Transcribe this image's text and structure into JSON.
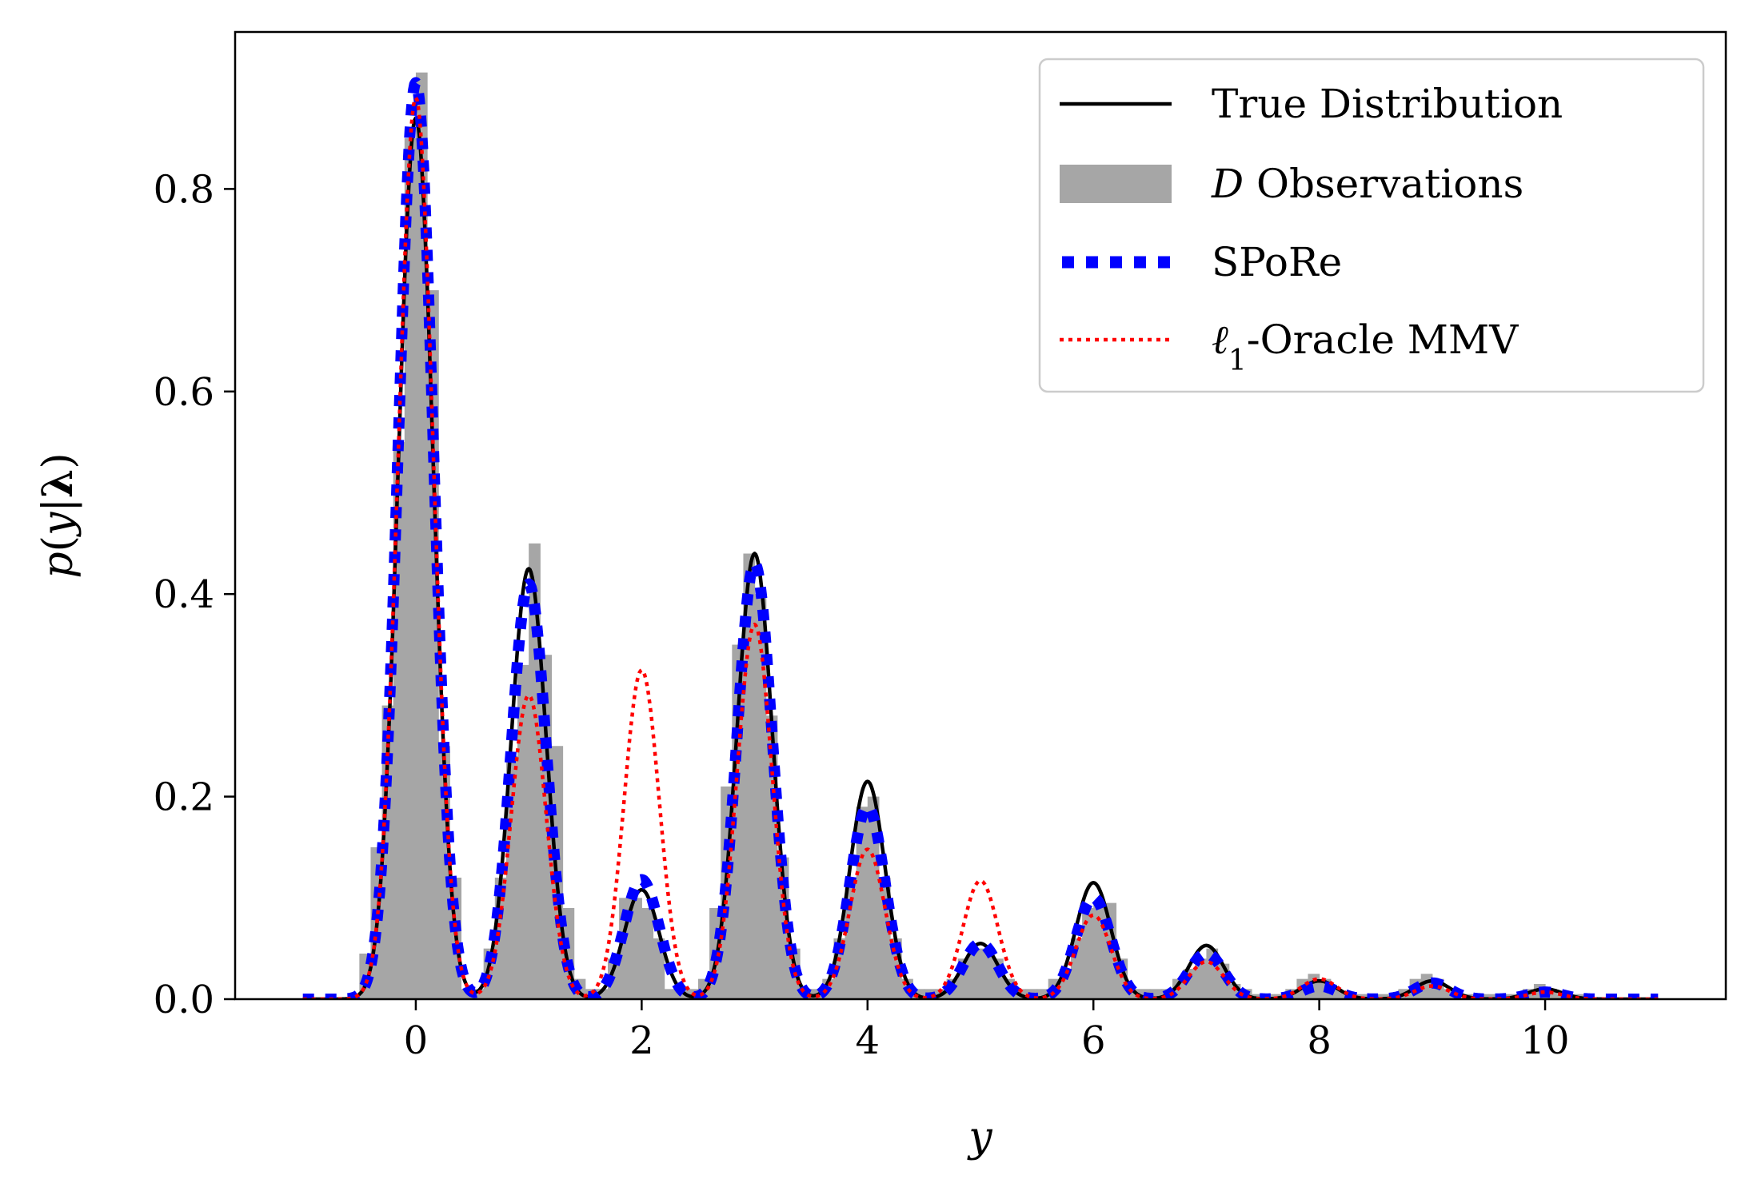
{
  "chart_data": {
    "type": "line",
    "title": "",
    "xlabel": "y",
    "ylabel": "p(y|λ)",
    "xlim": [
      -1.6,
      11.6
    ],
    "ylim": [
      0.0,
      0.955
    ],
    "xticks": [
      0,
      2,
      4,
      6,
      8,
      10
    ],
    "xtick_labels": [
      "0",
      "2",
      "4",
      "6",
      "8",
      "10"
    ],
    "yticks": [
      0.0,
      0.2,
      0.4,
      0.6,
      0.8
    ],
    "ytick_labels": [
      "0.0",
      "0.2",
      "0.4",
      "0.6",
      "0.8"
    ],
    "grid": false,
    "legend_position": "top-right",
    "mixture": {
      "sigma": 0.155,
      "peak_locations": [
        0,
        1,
        2,
        3,
        4,
        5,
        6,
        7,
        8,
        9,
        10
      ]
    },
    "series": [
      {
        "name": "True Distribution",
        "style": "solid",
        "color": "#000000",
        "peak_heights": [
          0.87,
          0.425,
          0.108,
          0.44,
          0.215,
          0.055,
          0.115,
          0.053,
          0.018,
          0.018,
          0.01
        ]
      },
      {
        "name": "D Observations",
        "style": "histogram",
        "color": "#a6a6a6",
        "bin_width": 0.1,
        "bin_starts": [
          -0.5,
          -0.4,
          -0.3,
          -0.2,
          -0.1,
          0.0,
          0.1,
          0.2,
          0.3,
          0.4,
          0.5,
          0.6,
          0.7,
          0.8,
          0.9,
          1.0,
          1.1,
          1.2,
          1.3,
          1.4,
          1.5,
          1.6,
          1.7,
          1.8,
          1.9,
          2.0,
          2.1,
          2.2,
          2.3,
          2.4,
          2.5,
          2.6,
          2.7,
          2.8,
          2.9,
          3.0,
          3.1,
          3.2,
          3.3,
          3.4,
          3.5,
          3.6,
          3.7,
          3.8,
          3.9,
          4.0,
          4.1,
          4.2,
          4.3,
          4.4,
          4.5,
          4.6,
          4.7,
          4.8,
          4.9,
          5.0,
          5.1,
          5.2,
          5.3,
          5.4,
          5.5,
          5.6,
          5.7,
          5.8,
          5.9,
          6.0,
          6.1,
          6.2,
          6.3,
          6.4,
          6.5,
          6.6,
          6.7,
          6.8,
          6.9,
          7.0,
          7.1,
          7.2,
          7.3,
          7.4,
          7.5,
          7.6,
          7.7,
          7.8,
          7.9,
          8.0,
          8.1,
          8.2,
          8.3,
          8.4,
          8.5,
          8.6,
          8.7,
          8.8,
          8.9,
          9.0,
          9.1,
          9.2,
          9.3,
          9.4,
          9.5,
          9.6,
          9.7,
          9.8,
          9.9,
          10.0,
          10.1,
          10.2,
          10.3
        ],
        "values": [
          0.045,
          0.15,
          0.29,
          0.55,
          0.85,
          0.915,
          0.7,
          0.25,
          0.12,
          0.01,
          0.01,
          0.05,
          0.12,
          0.24,
          0.33,
          0.45,
          0.34,
          0.25,
          0.09,
          0.02,
          0.01,
          0.01,
          0.04,
          0.1,
          0.1,
          0.09,
          0.06,
          0.01,
          0.01,
          0.01,
          0.02,
          0.09,
          0.21,
          0.35,
          0.44,
          0.4,
          0.28,
          0.14,
          0.05,
          0.01,
          0.01,
          0.02,
          0.06,
          0.12,
          0.19,
          0.2,
          0.12,
          0.06,
          0.02,
          0.01,
          0.01,
          0.01,
          0.02,
          0.04,
          0.05,
          0.05,
          0.04,
          0.02,
          0.01,
          0.01,
          0.01,
          0.02,
          0.03,
          0.06,
          0.09,
          0.095,
          0.095,
          0.04,
          0.01,
          0.01,
          0.01,
          0.01,
          0.02,
          0.03,
          0.04,
          0.05,
          0.035,
          0.015,
          0.01,
          0.005,
          0.005,
          0.005,
          0.01,
          0.02,
          0.025,
          0.02,
          0.01,
          0.005,
          0.005,
          0.005,
          0.005,
          0.005,
          0.01,
          0.02,
          0.025,
          0.02,
          0.01,
          0.005,
          0.005,
          0.005,
          0.005,
          0.005,
          0.005,
          0.01,
          0.015,
          0.01,
          0.005,
          0.005,
          0.005
        ]
      },
      {
        "name": "SPoRe",
        "style": "dotted-thick",
        "color": "#0000ff",
        "peak_heights": [
          0.905,
          0.41,
          0.118,
          0.43,
          0.19,
          0.055,
          0.1,
          0.045,
          0.013,
          0.016,
          0.007
        ]
      },
      {
        "name": "ℓ1-Oracle MMV",
        "style": "dotted",
        "color": "#ff0000",
        "peak_heights": [
          0.89,
          0.3,
          0.325,
          0.37,
          0.148,
          0.117,
          0.083,
          0.037,
          0.02,
          0.013,
          0.007
        ]
      }
    ],
    "legend": {
      "entries": [
        {
          "label": "True Distribution"
        },
        {
          "label_italic": "D",
          "label": " Observations"
        },
        {
          "label": "SPoRe"
        },
        {
          "label_italic": "ℓ",
          "label_sub": "1",
          "label": "-Oracle MMV"
        }
      ]
    }
  }
}
